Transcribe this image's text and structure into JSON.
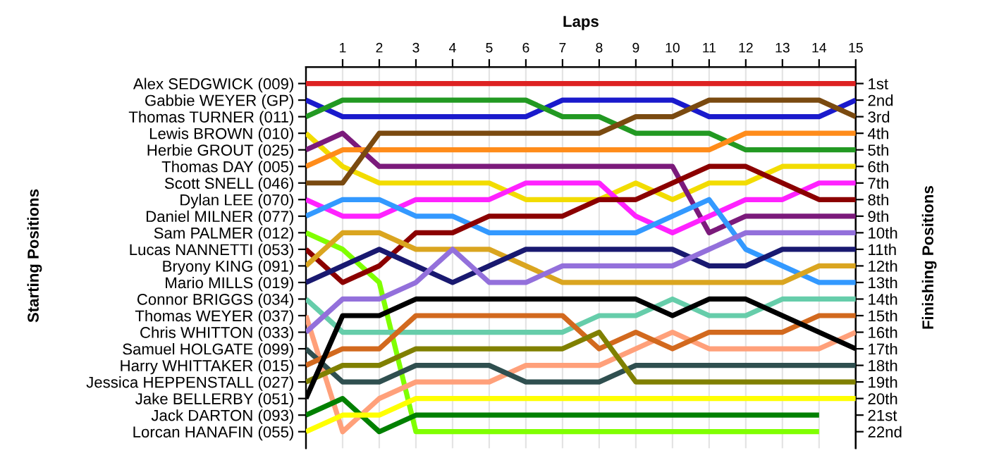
{
  "chart_data": {
    "type": "line",
    "xlabel": "Laps",
    "annotations": [
      "Starting Positions"
    ],
    "y2label": "Finishing Positions",
    "x": [
      0,
      1,
      2,
      3,
      4,
      5,
      6,
      7,
      8,
      9,
      10,
      11,
      12,
      13,
      14,
      15
    ],
    "xlim": [
      0,
      15
    ],
    "xticks": [
      1,
      2,
      3,
      4,
      5,
      6,
      7,
      8,
      9,
      10,
      11,
      12,
      13,
      14,
      15
    ],
    "y_categories": [
      "Alex SEDGWICK (009)",
      "Gabbie WEYER (GP)",
      "Thomas TURNER (011)",
      "Lewis BROWN (010)",
      "Herbie GROUT (025)",
      "Thomas DAY (005)",
      "Scott SNELL (046)",
      "Dylan LEE (070)",
      "Daniel MILNER (077)",
      "Sam PALMER (012)",
      "Lucas NANNETTI (053)",
      "Bryony KING (091)",
      "Mario MILLS (019)",
      "Connor BRIGGS (034)",
      "Thomas WEYER (037)",
      "Chris WHITTON (033)",
      "Samuel HOLGATE (099)",
      "Harry WHITTAKER (015)",
      "Jessica HEPPENSTALL (027)",
      "Jake BELLERBY (051)",
      "Jack DARTON (093)",
      "Lorcan HANAFIN (055)"
    ],
    "y2lim": [
      23,
      0
    ],
    "y2ticks": [
      {
        "value": 1,
        "label": "1st"
      },
      {
        "value": 2,
        "label": "2nd"
      },
      {
        "value": 3,
        "label": "3rd"
      },
      {
        "value": 4,
        "label": "4th"
      },
      {
        "value": 5,
        "label": "5th"
      },
      {
        "value": 6,
        "label": "6th"
      },
      {
        "value": 7,
        "label": "7th"
      },
      {
        "value": 8,
        "label": "8th"
      },
      {
        "value": 9,
        "label": "9th"
      },
      {
        "value": 10,
        "label": "10th"
      },
      {
        "value": 11,
        "label": "11th"
      },
      {
        "value": 12,
        "label": "12th"
      },
      {
        "value": 13,
        "label": "13th"
      },
      {
        "value": 14,
        "label": "14th"
      },
      {
        "value": 15,
        "label": "15th"
      },
      {
        "value": 16,
        "label": "16th"
      },
      {
        "value": 17,
        "label": "17th"
      },
      {
        "value": 18,
        "label": "18th"
      },
      {
        "value": 19,
        "label": "19th"
      },
      {
        "value": 20,
        "label": "20th"
      },
      {
        "value": 21,
        "label": "21st"
      },
      {
        "value": 22,
        "label": "22nd"
      }
    ],
    "grid": "x",
    "marker": "none",
    "line_style": "solid",
    "series": [
      {
        "axis": "y2",
        "color": "#dd2222",
        "values": [
          1,
          1,
          1,
          1,
          1,
          1,
          1,
          1,
          1,
          1,
          1,
          1,
          1,
          1,
          1,
          1
        ]
      },
      {
        "axis": "y2",
        "color": "#1a1acc",
        "values": [
          2,
          3,
          3,
          3,
          3,
          3,
          3,
          2,
          2,
          2,
          2,
          3,
          3,
          3,
          3,
          2
        ]
      },
      {
        "axis": "y2",
        "color": "#229922",
        "values": [
          3,
          2,
          2,
          2,
          2,
          2,
          2,
          3,
          3,
          4,
          4,
          4,
          5,
          5,
          5,
          5
        ]
      },
      {
        "axis": "y2",
        "color": "#f2dc00",
        "values": [
          4,
          6,
          7,
          7,
          7,
          7,
          8,
          8,
          8,
          7,
          8,
          7,
          7,
          6,
          6,
          6
        ]
      },
      {
        "axis": "y2",
        "color": "#7b1a7b",
        "values": [
          5,
          4,
          6,
          6,
          6,
          6,
          6,
          6,
          6,
          6,
          6,
          10,
          9,
          9,
          9,
          9
        ]
      },
      {
        "axis": "y2",
        "color": "#ff8c1a",
        "values": [
          6,
          5,
          5,
          5,
          5,
          5,
          5,
          5,
          5,
          5,
          5,
          5,
          4,
          4,
          4,
          4
        ]
      },
      {
        "axis": "y2",
        "color": "#7a4a10",
        "values": [
          7,
          7,
          4,
          4,
          4,
          4,
          4,
          4,
          4,
          3,
          3,
          2,
          2,
          2,
          2,
          3
        ]
      },
      {
        "axis": "y2",
        "color": "#ff22ff",
        "values": [
          8,
          9,
          9,
          8,
          8,
          8,
          7,
          7,
          7,
          9,
          10,
          9,
          8,
          8,
          7,
          7
        ]
      },
      {
        "axis": "y2",
        "color": "#3399ff",
        "values": [
          9,
          8,
          8,
          9,
          9,
          10,
          10,
          10,
          10,
          10,
          9,
          8,
          11,
          12,
          13,
          13
        ]
      },
      {
        "axis": "y2",
        "color": "#80ff00",
        "values": [
          10,
          11,
          13,
          22,
          22,
          22,
          22,
          22,
          22,
          22,
          22,
          22,
          22,
          22,
          22,
          null
        ]
      },
      {
        "axis": "y2",
        "color": "#8b0000",
        "values": [
          11,
          13,
          12,
          10,
          10,
          9,
          9,
          9,
          8,
          8,
          7,
          6,
          6,
          7,
          8,
          8
        ]
      },
      {
        "axis": "y2",
        "color": "#daa520",
        "values": [
          12,
          10,
          10,
          11,
          11,
          11,
          12,
          13,
          13,
          13,
          13,
          13,
          13,
          13,
          12,
          12
        ]
      },
      {
        "axis": "y2",
        "color": "#191970",
        "values": [
          13,
          12,
          11,
          12,
          13,
          12,
          11,
          11,
          11,
          11,
          11,
          12,
          12,
          11,
          11,
          11
        ]
      },
      {
        "axis": "y2",
        "color": "#66cdaa",
        "values": [
          14,
          16,
          16,
          16,
          16,
          16,
          16,
          16,
          15,
          15,
          14,
          15,
          15,
          14,
          14,
          14
        ]
      },
      {
        "axis": "y2",
        "color": "#ffa07a",
        "values": [
          15,
          22,
          20,
          19,
          19,
          19,
          18,
          18,
          18,
          17,
          16,
          17,
          17,
          17,
          17,
          16
        ]
      },
      {
        "axis": "y2",
        "color": "#9370db",
        "values": [
          16,
          14,
          14,
          13,
          11,
          13,
          13,
          12,
          12,
          12,
          12,
          11,
          10,
          10,
          10,
          10
        ]
      },
      {
        "axis": "y2",
        "color": "#2f4f4f",
        "values": [
          17,
          19,
          19,
          18,
          18,
          18,
          19,
          19,
          19,
          18,
          18,
          18,
          18,
          18,
          18,
          18
        ]
      },
      {
        "axis": "y2",
        "color": "#d2691e",
        "values": [
          18,
          17,
          17,
          15,
          15,
          15,
          15,
          15,
          17,
          16,
          17,
          16,
          16,
          16,
          15,
          15
        ]
      },
      {
        "axis": "y2",
        "color": "#808000",
        "values": [
          19,
          18,
          18,
          17,
          17,
          17,
          17,
          17,
          16,
          19,
          19,
          19,
          19,
          19,
          19,
          19
        ]
      },
      {
        "axis": "y2",
        "color": "#000000",
        "values": [
          20,
          15,
          15,
          14,
          14,
          14,
          14,
          14,
          14,
          14,
          15,
          14,
          14,
          15,
          16,
          17
        ]
      },
      {
        "axis": "y2",
        "color": "#008000",
        "values": [
          21,
          20,
          22,
          21,
          21,
          21,
          21,
          21,
          21,
          21,
          21,
          21,
          21,
          21,
          21,
          null
        ]
      },
      {
        "axis": "y2",
        "color": "#ffff00",
        "values": [
          22,
          21,
          21,
          20,
          20,
          20,
          20,
          20,
          20,
          20,
          20,
          20,
          20,
          20,
          20,
          20
        ]
      }
    ]
  }
}
